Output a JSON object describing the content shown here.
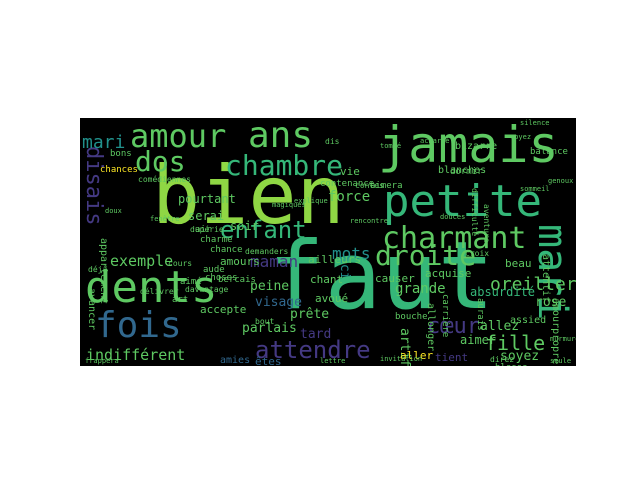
{
  "palette": {
    "lime": "#8fd744",
    "green": "#5ec962",
    "teal": "#35b779",
    "cyan": "#21918c",
    "blue": "#31688e",
    "indigo": "#443983",
    "purple": "#440154",
    "yellow": "#fde725",
    "background": "#000000"
  },
  "words": [
    {
      "text": "bien",
      "color": "lime"
    },
    {
      "text": "faut",
      "color": "teal"
    },
    {
      "text": "jamais",
      "color": "green"
    },
    {
      "text": "petite",
      "color": "teal"
    },
    {
      "text": "ans",
      "color": "green"
    },
    {
      "text": "amour",
      "color": "green"
    },
    {
      "text": "dents",
      "color": "green"
    },
    {
      "text": "fois",
      "color": "blue"
    },
    {
      "text": "mari",
      "color": "teal"
    },
    {
      "text": "charmant",
      "color": "green"
    },
    {
      "text": "chambre",
      "color": "teal"
    },
    {
      "text": "dos",
      "color": "green"
    },
    {
      "text": "droite",
      "color": "green"
    },
    {
      "text": "enfant",
      "color": "teal"
    },
    {
      "text": "attendre",
      "color": "indigo"
    },
    {
      "text": "disais",
      "color": "indigo"
    },
    {
      "text": "cœur",
      "color": "indigo"
    },
    {
      "text": "mari",
      "color": "cyan"
    },
    {
      "text": "fille",
      "color": "green"
    },
    {
      "text": "oreiller",
      "color": "green"
    },
    {
      "text": "grande",
      "color": "green"
    },
    {
      "text": "force",
      "color": "green"
    },
    {
      "text": "mots",
      "color": "cyan"
    },
    {
      "text": "maman",
      "color": "indigo"
    },
    {
      "text": "exemple",
      "color": "green"
    },
    {
      "text": "indifférent",
      "color": "green"
    },
    {
      "text": "ici",
      "color": "cyan"
    },
    {
      "text": "rose",
      "color": "green"
    },
    {
      "text": "peine",
      "color": "green"
    },
    {
      "text": "visage",
      "color": "blue"
    },
    {
      "text": "parlais",
      "color": "green"
    },
    {
      "text": "prête",
      "color": "green"
    },
    {
      "text": "tard",
      "color": "indigo"
    },
    {
      "text": "allez",
      "color": "green"
    },
    {
      "text": "soyez",
      "color": "green"
    },
    {
      "text": "artificiel",
      "color": "green"
    },
    {
      "text": "absurdité",
      "color": "teal"
    },
    {
      "text": "aimer",
      "color": "green"
    },
    {
      "text": "soir",
      "color": "green"
    },
    {
      "text": "pourtant",
      "color": "green"
    },
    {
      "text": "serai",
      "color": "green"
    },
    {
      "text": "vie",
      "color": "green"
    },
    {
      "text": "amours",
      "color": "green"
    },
    {
      "text": "aller",
      "color": "yellow"
    },
    {
      "text": "tient",
      "color": "indigo"
    },
    {
      "text": "accepte",
      "color": "green"
    },
    {
      "text": "êtes",
      "color": "blue"
    },
    {
      "text": "beau",
      "color": "green"
    },
    {
      "text": "chant",
      "color": "green"
    },
    {
      "text": "avoué",
      "color": "green"
    },
    {
      "text": "ailleurs",
      "color": "green"
    },
    {
      "text": "acquise",
      "color": "green"
    },
    {
      "text": "causer",
      "color": "green"
    },
    {
      "text": "bizarre",
      "color": "green"
    },
    {
      "text": "blanches",
      "color": "green"
    },
    {
      "text": "bons",
      "color": "green"
    },
    {
      "text": "chances",
      "color": "yellow"
    },
    {
      "text": "choses",
      "color": "green"
    },
    {
      "text": "bouche",
      "color": "green"
    },
    {
      "text": "allonger",
      "color": "green"
    },
    {
      "text": "dormir",
      "color": "green"
    },
    {
      "text": "assied",
      "color": "green"
    },
    {
      "text": "amies",
      "color": "blue"
    },
    {
      "text": "avancer",
      "color": "green"
    },
    {
      "text": "appartement",
      "color": "green"
    },
    {
      "text": "attentif",
      "color": "green"
    },
    {
      "text": "amourpropre",
      "color": "green"
    },
    {
      "text": "balance",
      "color": "green"
    },
    {
      "text": "blesse",
      "color": "green"
    },
    {
      "text": "chance",
      "color": "green"
    },
    {
      "text": "charme",
      "color": "green"
    },
    {
      "text": "aimé",
      "color": "green"
    },
    {
      "text": "air",
      "color": "green"
    },
    {
      "text": "aude",
      "color": "green"
    },
    {
      "text": "art",
      "color": "green"
    },
    {
      "text": "bercais",
      "color": "green"
    },
    {
      "text": "davantage",
      "color": "green"
    },
    {
      "text": "aurais",
      "color": "green"
    },
    {
      "text": "carrière",
      "color": "green"
    },
    {
      "text": "déjà",
      "color": "green"
    },
    {
      "text": "aimera",
      "color": "green"
    },
    {
      "text": "contenance",
      "color": "green"
    },
    {
      "text": "comédiennes",
      "color": "green"
    },
    {
      "text": "dupérie",
      "color": "green"
    },
    {
      "text": "aventure",
      "color": "green"
    },
    {
      "text": "cours",
      "color": "green"
    },
    {
      "text": "délivrer",
      "color": "green"
    },
    {
      "text": "demanders",
      "color": "green"
    },
    {
      "text": "croix",
      "color": "green"
    },
    {
      "text": "acharné",
      "color": "green"
    },
    {
      "text": "difficulté",
      "color": "green"
    },
    {
      "text": "direz",
      "color": "green"
    },
    {
      "text": "contes",
      "color": "green"
    },
    {
      "text": "magiques",
      "color": "green"
    },
    {
      "text": "bout",
      "color": "green"
    },
    {
      "text": "tombé",
      "color": "green"
    },
    {
      "text": "murmure",
      "color": "green"
    },
    {
      "text": "dis",
      "color": "green"
    },
    {
      "text": "frappera",
      "color": "green"
    },
    {
      "text": "rencontre",
      "color": "green"
    },
    {
      "text": "explique",
      "color": "green"
    },
    {
      "text": "douces",
      "color": "green"
    },
    {
      "text": "voyez",
      "color": "green"
    },
    {
      "text": "invitation",
      "color": "green"
    },
    {
      "text": "sommeil",
      "color": "green"
    },
    {
      "text": "doux",
      "color": "green"
    },
    {
      "text": "genoux",
      "color": "green"
    },
    {
      "text": "fenêtre",
      "color": "green"
    },
    {
      "text": "seule",
      "color": "green"
    },
    {
      "text": "lettre",
      "color": "green"
    },
    {
      "text": "silence",
      "color": "green"
    }
  ]
}
